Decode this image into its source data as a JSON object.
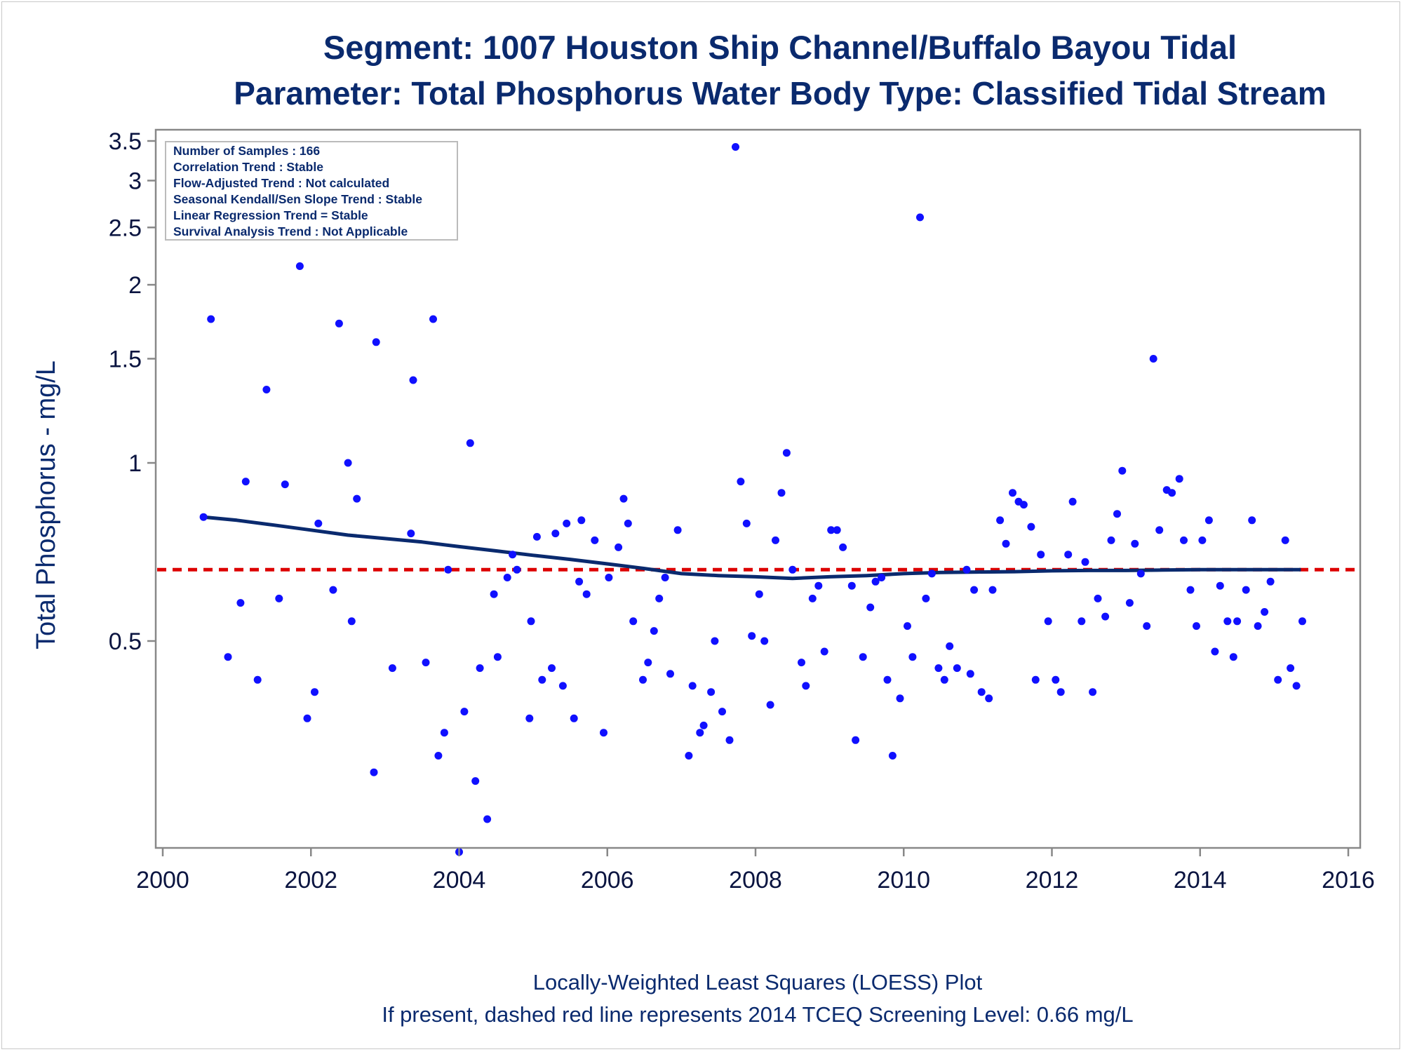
{
  "chart_data": {
    "type": "scatter",
    "title": "Segment: 1007  Houston Ship Channel/Buffalo Bayou Tidal",
    "subtitle": "Parameter: Total Phosphorus   Water Body Type: Classified Tidal Stream",
    "ylabel": "Total Phosphorus - mg/L",
    "xlabel": "",
    "y_scale": "log",
    "xlim": [
      2000,
      2016
    ],
    "ylim": [
      0.16,
      3.6
    ],
    "x_ticks": [
      "2000",
      "2002",
      "2004",
      "2006",
      "2008",
      "2010",
      "2012",
      "2014",
      "2016"
    ],
    "y_ticks": [
      "0.5",
      "1",
      "1.5",
      "2",
      "2.5",
      "3",
      "3.5"
    ],
    "legend_box_position": "top-left",
    "info_box": [
      "Number of Samples : 166",
      "Correlation Trend : Stable",
      "Flow-Adjusted Trend : Not calculated",
      "Seasonal Kendall/Sen Slope Trend : Stable",
      "Linear Regression Trend = Stable",
      "Survival Analysis Trend : Not Applicable"
    ],
    "footnotes": [
      "Locally-Weighted Least Squares (LOESS) Plot",
      "If present, dashed red line represents 2014 TCEQ Screening Level: 0.66 mg/L"
    ],
    "screening_level": 0.66,
    "colors": {
      "points": "#1010ff",
      "loess": "#0a2a6e",
      "screening": "#dd0000",
      "text": "#0a2a6e",
      "axis": "#888888"
    },
    "loess": [
      [
        2000.55,
        0.81
      ],
      [
        2001.0,
        0.8
      ],
      [
        2001.5,
        0.785
      ],
      [
        2002.0,
        0.77
      ],
      [
        2002.5,
        0.755
      ],
      [
        2003.0,
        0.745
      ],
      [
        2003.5,
        0.735
      ],
      [
        2004.0,
        0.722
      ],
      [
        2004.5,
        0.71
      ],
      [
        2005.0,
        0.698
      ],
      [
        2005.5,
        0.687
      ],
      [
        2006.0,
        0.675
      ],
      [
        2006.5,
        0.663
      ],
      [
        2007.0,
        0.65
      ],
      [
        2007.5,
        0.645
      ],
      [
        2008.0,
        0.642
      ],
      [
        2008.5,
        0.638
      ],
      [
        2009.0,
        0.642
      ],
      [
        2009.5,
        0.645
      ],
      [
        2010.0,
        0.65
      ],
      [
        2010.5,
        0.653
      ],
      [
        2011.0,
        0.654
      ],
      [
        2011.5,
        0.655
      ],
      [
        2012.0,
        0.657
      ],
      [
        2012.5,
        0.658
      ],
      [
        2013.0,
        0.658
      ],
      [
        2013.5,
        0.659
      ],
      [
        2014.0,
        0.66
      ],
      [
        2014.5,
        0.66
      ],
      [
        2015.36,
        0.66
      ]
    ],
    "points": [
      [
        2000.55,
        0.81
      ],
      [
        2000.65,
        1.75
      ],
      [
        2000.88,
        0.47
      ],
      [
        2001.05,
        0.58
      ],
      [
        2001.12,
        0.93
      ],
      [
        2001.28,
        0.43
      ],
      [
        2001.4,
        1.33
      ],
      [
        2001.57,
        0.59
      ],
      [
        2001.65,
        0.92
      ],
      [
        2001.85,
        2.15
      ],
      [
        2001.95,
        0.37
      ],
      [
        2002.05,
        0.41
      ],
      [
        2002.1,
        0.79
      ],
      [
        2002.3,
        0.61
      ],
      [
        2002.38,
        1.72
      ],
      [
        2002.5,
        1.0
      ],
      [
        2002.55,
        0.54
      ],
      [
        2002.62,
        0.87
      ],
      [
        2002.85,
        0.3
      ],
      [
        2002.88,
        1.6
      ],
      [
        2003.1,
        0.45
      ],
      [
        2003.35,
        0.76
      ],
      [
        2003.38,
        1.38
      ],
      [
        2003.55,
        0.46
      ],
      [
        2003.65,
        1.75
      ],
      [
        2003.72,
        0.32
      ],
      [
        2003.8,
        0.35
      ],
      [
        2003.85,
        0.66
      ],
      [
        2004.0,
        0.22
      ],
      [
        2004.07,
        0.38
      ],
      [
        2004.15,
        1.08
      ],
      [
        2004.22,
        0.29
      ],
      [
        2004.28,
        0.45
      ],
      [
        2004.38,
        0.25
      ],
      [
        2004.47,
        0.6
      ],
      [
        2004.52,
        0.47
      ],
      [
        2004.65,
        0.64
      ],
      [
        2004.72,
        0.7
      ],
      [
        2004.78,
        0.66
      ],
      [
        2004.95,
        0.37
      ],
      [
        2004.97,
        0.54
      ],
      [
        2005.05,
        0.75
      ],
      [
        2005.12,
        0.43
      ],
      [
        2005.25,
        0.45
      ],
      [
        2005.3,
        0.76
      ],
      [
        2005.4,
        0.42
      ],
      [
        2005.45,
        0.79
      ],
      [
        2005.55,
        0.37
      ],
      [
        2005.62,
        0.63
      ],
      [
        2005.65,
        0.8
      ],
      [
        2005.72,
        0.6
      ],
      [
        2005.83,
        0.74
      ],
      [
        2005.95,
        0.35
      ],
      [
        2006.02,
        0.64
      ],
      [
        2006.15,
        0.72
      ],
      [
        2006.22,
        0.87
      ],
      [
        2006.28,
        0.79
      ],
      [
        2006.35,
        0.54
      ],
      [
        2006.48,
        0.43
      ],
      [
        2006.55,
        0.46
      ],
      [
        2006.63,
        0.52
      ],
      [
        2006.7,
        0.59
      ],
      [
        2006.78,
        0.64
      ],
      [
        2006.85,
        0.44
      ],
      [
        2006.95,
        0.77
      ],
      [
        2007.1,
        0.32
      ],
      [
        2007.15,
        0.42
      ],
      [
        2007.25,
        0.35
      ],
      [
        2007.3,
        0.36
      ],
      [
        2007.4,
        0.41
      ],
      [
        2007.45,
        0.5
      ],
      [
        2007.55,
        0.38
      ],
      [
        2007.65,
        0.34
      ],
      [
        2007.73,
        3.42
      ],
      [
        2007.8,
        0.93
      ],
      [
        2007.88,
        0.79
      ],
      [
        2007.95,
        0.51
      ],
      [
        2008.05,
        0.6
      ],
      [
        2008.12,
        0.5
      ],
      [
        2008.2,
        0.39
      ],
      [
        2008.27,
        0.74
      ],
      [
        2008.35,
        0.89
      ],
      [
        2008.42,
        1.04
      ],
      [
        2008.5,
        0.66
      ],
      [
        2008.62,
        0.46
      ],
      [
        2008.68,
        0.42
      ],
      [
        2008.77,
        0.59
      ],
      [
        2008.85,
        0.62
      ],
      [
        2008.93,
        0.48
      ],
      [
        2009.02,
        0.77
      ],
      [
        2009.1,
        0.77
      ],
      [
        2009.18,
        0.72
      ],
      [
        2009.3,
        0.62
      ],
      [
        2009.35,
        0.34
      ],
      [
        2009.45,
        0.47
      ],
      [
        2009.55,
        0.57
      ],
      [
        2009.62,
        0.63
      ],
      [
        2009.7,
        0.64
      ],
      [
        2009.78,
        0.43
      ],
      [
        2009.85,
        0.32
      ],
      [
        2009.95,
        0.4
      ],
      [
        2010.05,
        0.53
      ],
      [
        2010.12,
        0.47
      ],
      [
        2010.22,
        2.6
      ],
      [
        2010.3,
        0.59
      ],
      [
        2010.38,
        0.65
      ],
      [
        2010.47,
        0.45
      ],
      [
        2010.55,
        0.43
      ],
      [
        2010.62,
        0.49
      ],
      [
        2010.72,
        0.45
      ],
      [
        2010.85,
        0.66
      ],
      [
        2010.9,
        0.44
      ],
      [
        2010.95,
        0.61
      ],
      [
        2011.05,
        0.41
      ],
      [
        2011.15,
        0.4
      ],
      [
        2011.2,
        0.61
      ],
      [
        2011.3,
        0.8
      ],
      [
        2011.38,
        0.73
      ],
      [
        2011.47,
        0.89
      ],
      [
        2011.55,
        0.86
      ],
      [
        2011.62,
        0.85
      ],
      [
        2011.72,
        0.78
      ],
      [
        2011.78,
        0.43
      ],
      [
        2011.85,
        0.7
      ],
      [
        2011.95,
        0.54
      ],
      [
        2012.05,
        0.43
      ],
      [
        2012.12,
        0.41
      ],
      [
        2012.22,
        0.7
      ],
      [
        2012.28,
        0.86
      ],
      [
        2012.4,
        0.54
      ],
      [
        2012.45,
        0.68
      ],
      [
        2012.55,
        0.41
      ],
      [
        2012.62,
        0.59
      ],
      [
        2012.72,
        0.55
      ],
      [
        2012.8,
        0.74
      ],
      [
        2012.88,
        0.82
      ],
      [
        2012.95,
        0.97
      ],
      [
        2013.05,
        0.58
      ],
      [
        2013.12,
        0.73
      ],
      [
        2013.2,
        0.65
      ],
      [
        2013.28,
        0.53
      ],
      [
        2013.37,
        1.5
      ],
      [
        2013.45,
        0.77
      ],
      [
        2013.55,
        0.9
      ],
      [
        2013.62,
        0.89
      ],
      [
        2013.72,
        0.94
      ],
      [
        2013.78,
        0.74
      ],
      [
        2013.87,
        0.61
      ],
      [
        2013.95,
        0.53
      ],
      [
        2014.03,
        0.74
      ],
      [
        2014.12,
        0.8
      ],
      [
        2014.2,
        0.48
      ],
      [
        2014.27,
        0.62
      ],
      [
        2014.37,
        0.54
      ],
      [
        2014.45,
        0.47
      ],
      [
        2014.5,
        0.54
      ],
      [
        2014.62,
        0.61
      ],
      [
        2014.7,
        0.8
      ],
      [
        2014.78,
        0.53
      ],
      [
        2014.87,
        0.56
      ],
      [
        2014.95,
        0.63
      ],
      [
        2015.05,
        0.43
      ],
      [
        2015.15,
        0.74
      ],
      [
        2015.22,
        0.45
      ],
      [
        2015.3,
        0.42
      ],
      [
        2015.38,
        0.54
      ]
    ]
  }
}
